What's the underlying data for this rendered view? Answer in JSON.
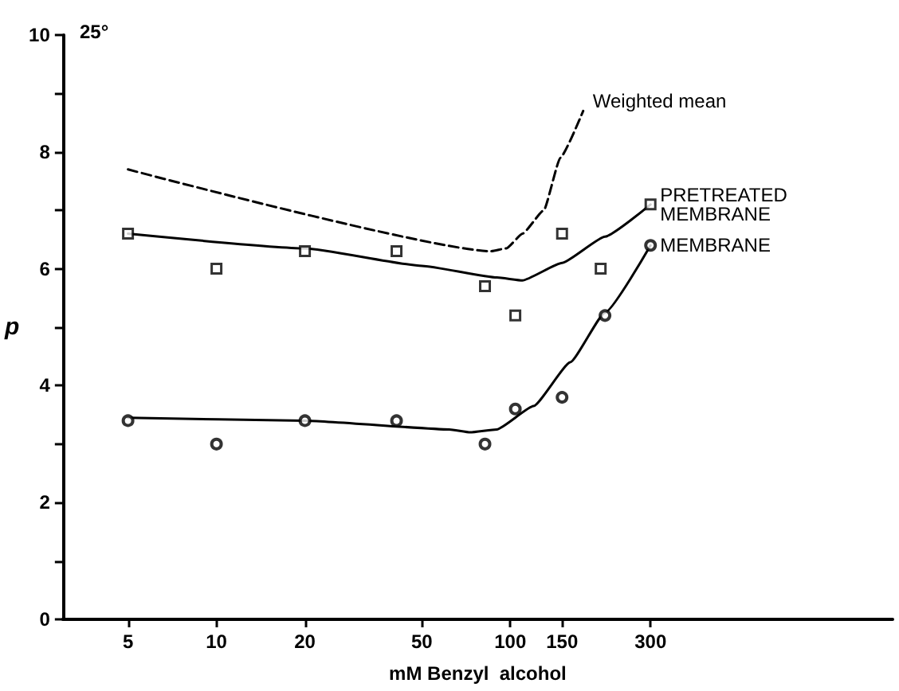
{
  "chart_data": {
    "type": "scatter",
    "xlabel": "mM Benzyl  alcohol",
    "ylabel": "p",
    "log": "x",
    "annotations": [
      "25°"
    ],
    "xlim": [
      3,
      2000
    ],
    "xticks": [
      5,
      10,
      20,
      50,
      100,
      150,
      300
    ],
    "ylim": [
      0,
      10
    ],
    "yticks": [
      0,
      {
        "value": 1,
        "label": null
      },
      2,
      {
        "value": 3,
        "label": null
      },
      4,
      {
        "value": 5,
        "label": null
      },
      6,
      {
        "value": 7,
        "label": null
      },
      8,
      {
        "value": 9,
        "label": null
      },
      10
    ],
    "grid": false,
    "legend": false,
    "series": [
      {
        "marker": "square",
        "color": "#000000",
        "x": [
          5,
          10,
          20,
          41,
          82,
          104,
          150,
          203,
          300
        ],
        "values": [
          6.6,
          6.0,
          6.3,
          6.3,
          5.7,
          5.2,
          6.6,
          6.0,
          7.1
        ]
      },
      {
        "marker": "circle",
        "color": "#000000",
        "x": [
          5,
          10,
          20,
          41,
          82,
          104,
          150,
          210,
          300
        ],
        "values": [
          3.4,
          3.0,
          3.4,
          3.4,
          3.0,
          3.6,
          3.8,
          5.2,
          6.4
        ]
      },
      {
        "type": "line",
        "name": "PRETREATED\nMEMBRANE",
        "marker": "none",
        "line_style": "solid",
        "color": "#000000",
        "x": [
          5,
          20,
          50,
          90,
          110,
          150,
          210,
          300
        ],
        "values": [
          6.6,
          6.35,
          6.05,
          5.85,
          5.8,
          6.1,
          6.55,
          7.1
        ]
      },
      {
        "type": "line",
        "name": "MEMBRANE",
        "marker": "none",
        "line_style": "solid",
        "color": "#000000",
        "x": [
          5,
          20,
          62,
          73,
          90,
          120,
          160,
          210,
          300
        ],
        "values": [
          3.45,
          3.4,
          3.25,
          3.2,
          3.25,
          3.65,
          4.4,
          5.25,
          6.4
        ]
      },
      {
        "type": "line",
        "name": "Weighted mean",
        "marker": "none",
        "line_style": "dashed",
        "color": "#000000",
        "x": [
          5,
          86,
          97,
          110,
          130,
          148,
          177
        ],
        "values": [
          7.7,
          6.3,
          6.35,
          6.6,
          7.0,
          7.9,
          8.7
        ]
      }
    ]
  }
}
